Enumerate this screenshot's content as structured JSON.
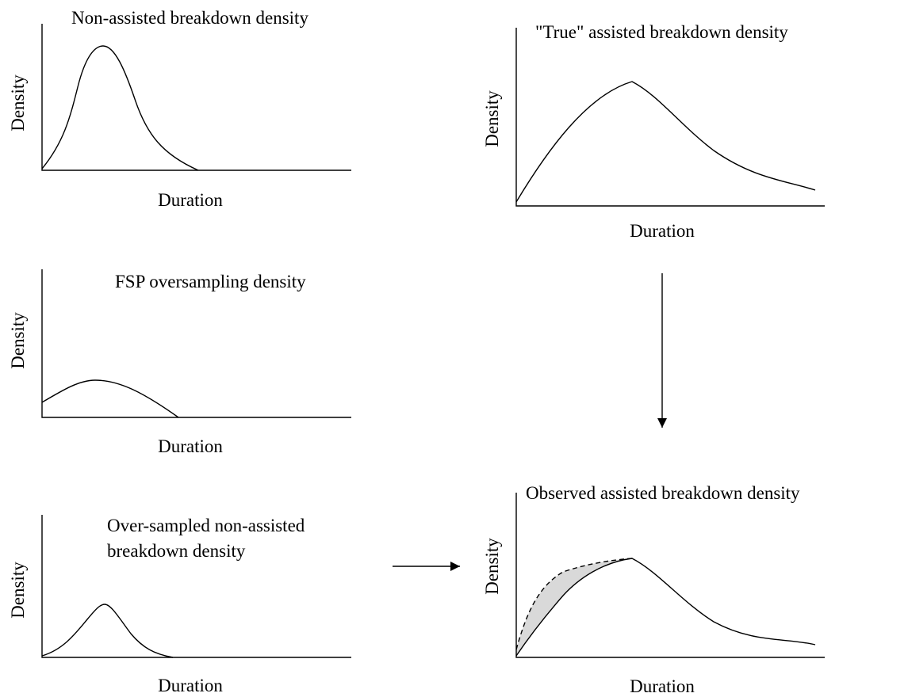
{
  "panels": [
    {
      "title_lines": [
        "Non-assisted breakdown density"
      ],
      "y_label": "Density",
      "x_label": "Duration"
    },
    {
      "title_lines": [
        "\"True\" assisted breakdown density"
      ],
      "y_label": "Density",
      "x_label": "Duration"
    },
    {
      "title_lines": [
        "FSP oversampling density"
      ],
      "y_label": "Density",
      "x_label": "Duration"
    },
    {
      "title_lines": [
        "Over-sampled non-assisted",
        "breakdown density"
      ],
      "y_label": "Density",
      "x_label": "Duration"
    },
    {
      "title_lines": [
        "Observed assisted breakdown density"
      ],
      "y_label": "Density",
      "x_label": "Duration"
    }
  ]
}
